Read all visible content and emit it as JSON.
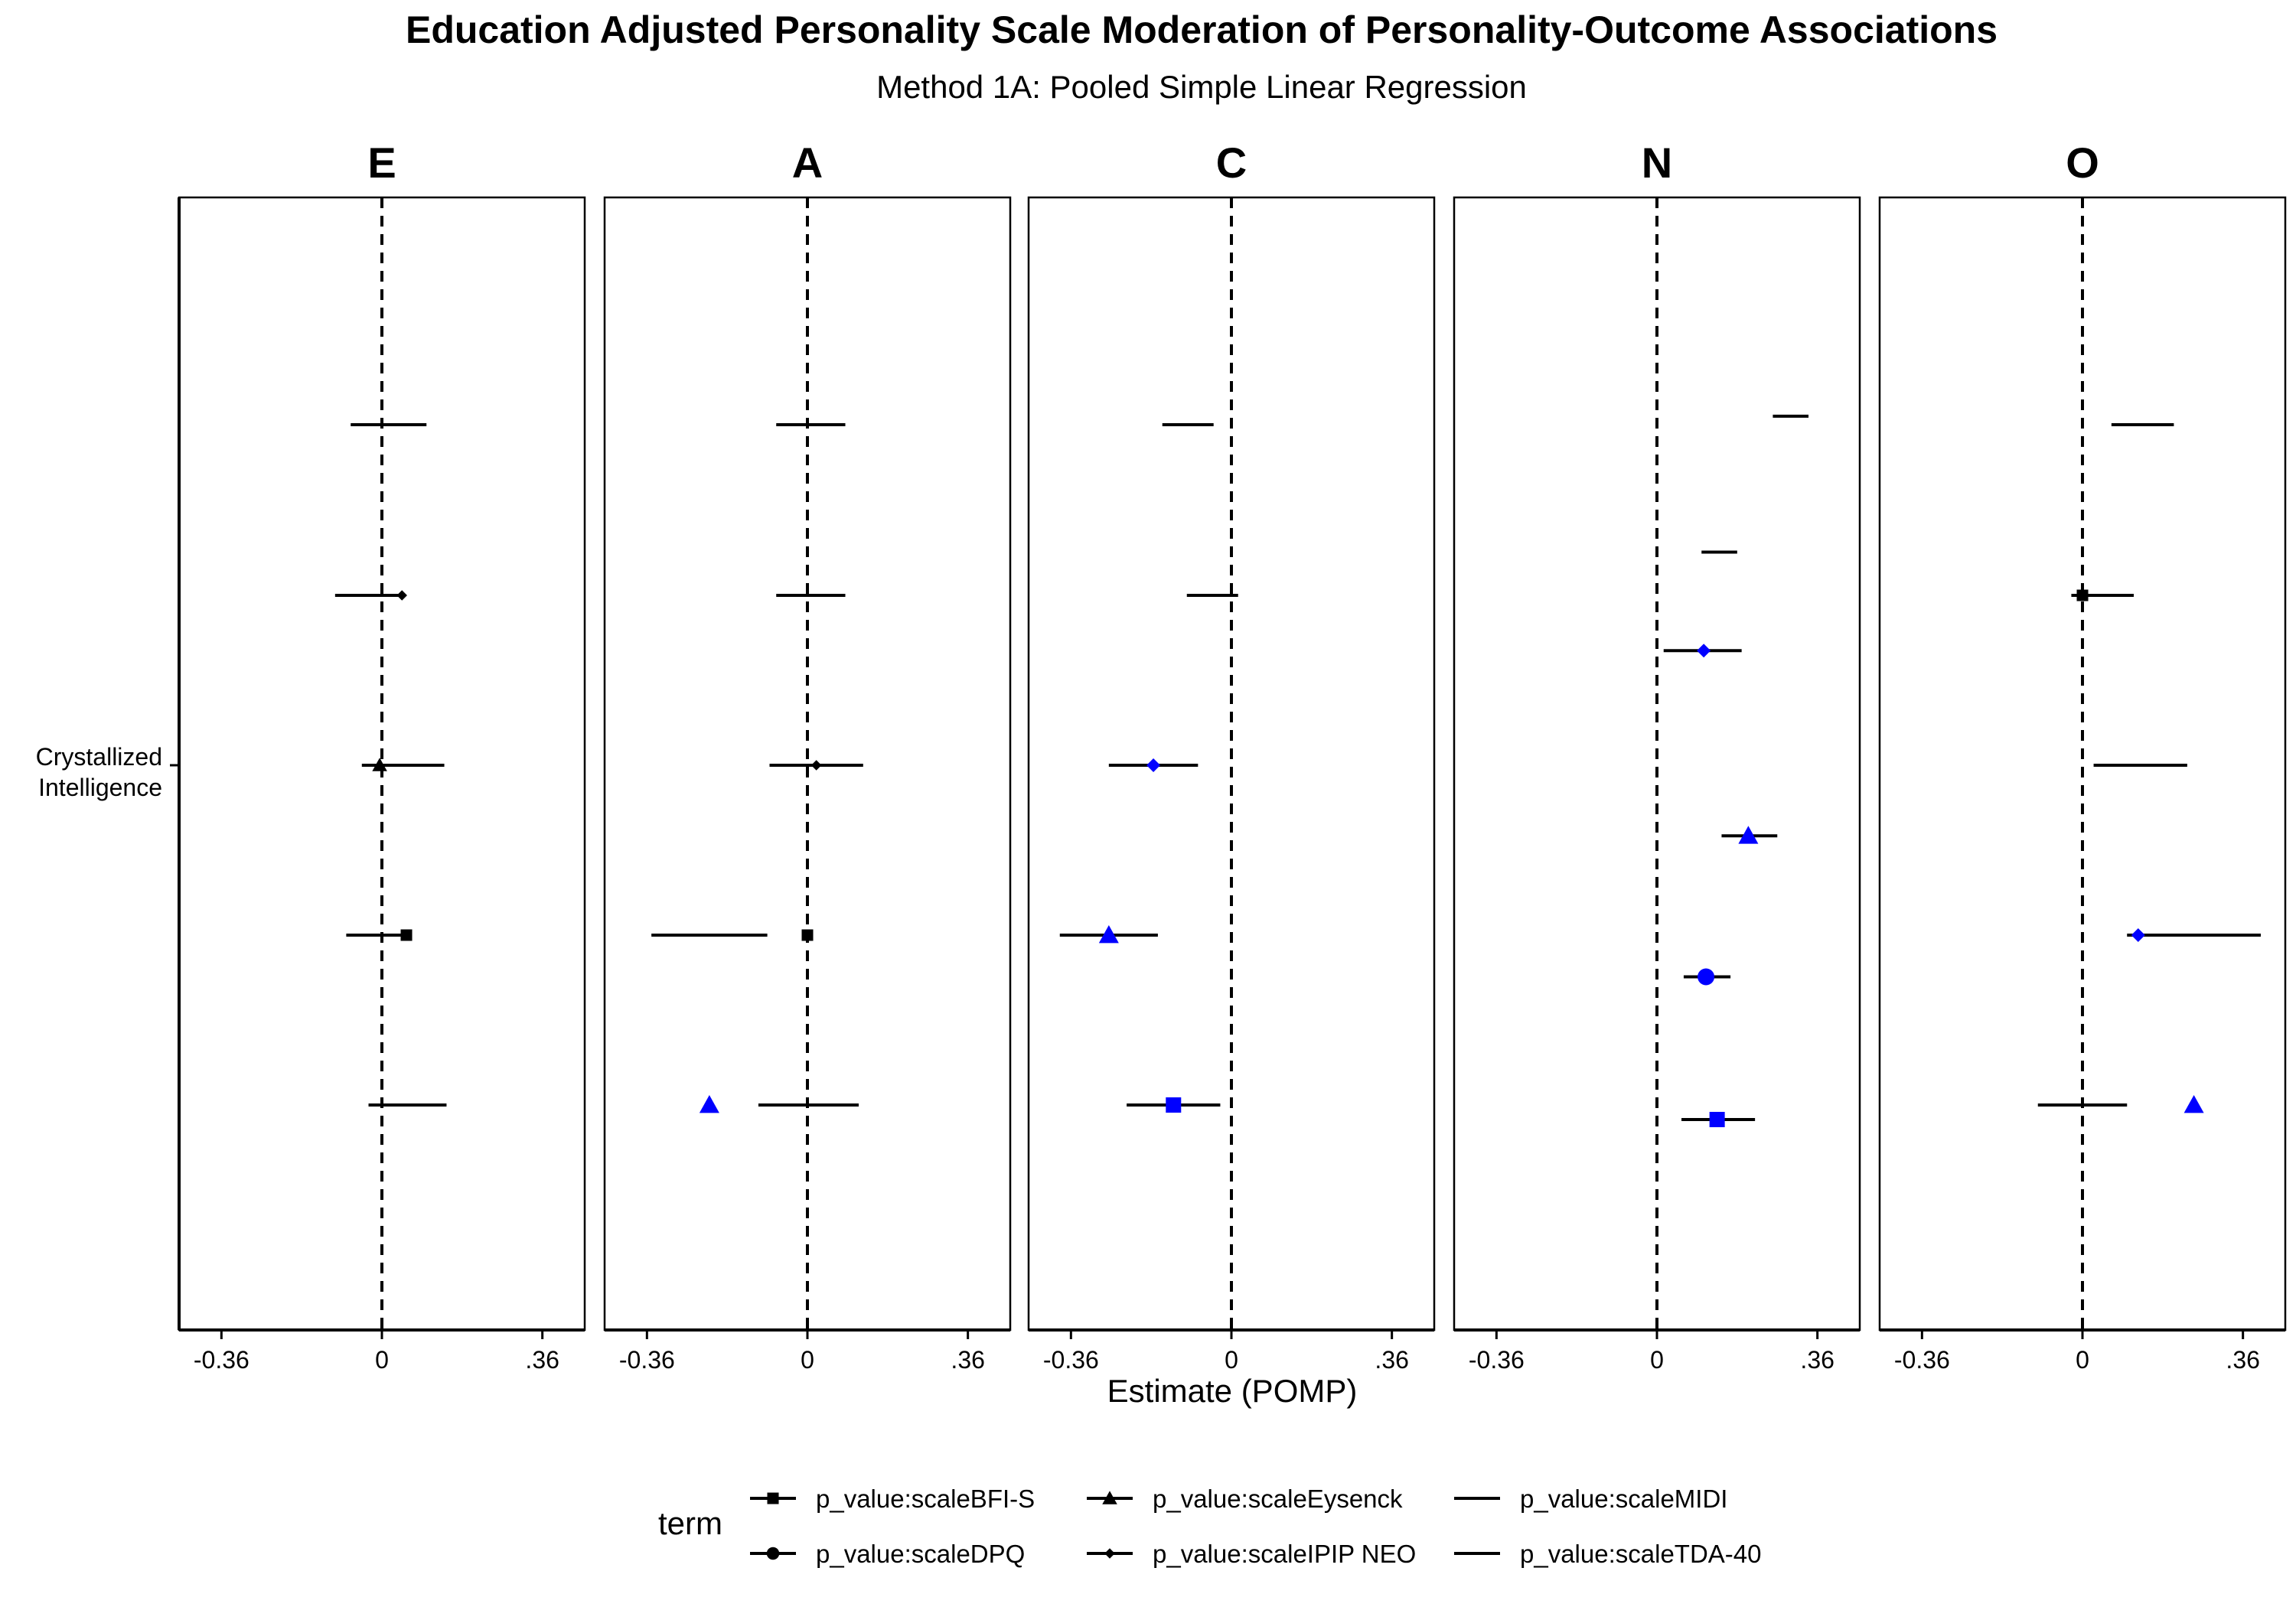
{
  "chart_data": {
    "type": "forest",
    "title": "Education Adjusted Personality Scale Moderation of Personality-Outcome Associations",
    "subtitle": "Method 1A: Pooled Simple Linear Regression",
    "xlabel": "Estimate (POMP)",
    "ylabel_category": "Crystallized Intelligence",
    "x_ticks": [
      {
        "value": -0.36,
        "label": "-0.36"
      },
      {
        "value": 0,
        "label": "0"
      },
      {
        "value": 0.36,
        "label": ".36"
      }
    ],
    "xlim": [
      -0.455,
      0.455
    ],
    "reference_line": 0,
    "legend": {
      "title": "term",
      "position": "bottom",
      "entries": [
        {
          "label": "p_value:scaleBFI-S",
          "shape": "square"
        },
        {
          "label": "p_value:scaleDPQ",
          "shape": "circle"
        },
        {
          "label": "p_value:scaleEysenck",
          "shape": "triangle"
        },
        {
          "label": "p_value:scaleIPIP NEO",
          "shape": "diamond"
        },
        {
          "label": "p_value:scaleMIDI",
          "shape": "none"
        },
        {
          "label": "p_value:scaleTDA-40",
          "shape": "none"
        }
      ]
    },
    "colors": {
      "significant": "#0000ff",
      "nonsignificant": "#000000"
    },
    "panels": [
      {
        "label": "E",
        "rows": [
          {
            "row": 0,
            "estimate": 0.05,
            "lo": -0.07,
            "hi": 0.1,
            "scale": "MIDI",
            "shape": "none",
            "significant": false
          },
          {
            "row": 1,
            "estimate": 0.045,
            "lo": -0.105,
            "hi": 0.045,
            "scale": "IPIP NEO",
            "shape": "diamond",
            "significant": false
          },
          {
            "row": 2,
            "estimate": -0.005,
            "lo": -0.045,
            "hi": 0.14,
            "scale": "Eysenck",
            "shape": "triangle",
            "significant": false
          },
          {
            "row": 3,
            "estimate": 0.055,
            "lo": -0.08,
            "hi": 0.055,
            "scale": "BFI-S",
            "shape": "square",
            "significant": false
          },
          {
            "row": 4,
            "estimate": 0.05,
            "lo": -0.03,
            "hi": 0.145,
            "scale": "TDA-40",
            "shape": "none",
            "significant": false
          }
        ]
      },
      {
        "label": "A",
        "rows": [
          {
            "row": 0,
            "estimate": 0.0,
            "lo": -0.07,
            "hi": 0.085,
            "scale": "MIDI",
            "shape": "none",
            "significant": false
          },
          {
            "row": 1,
            "estimate": 0.0,
            "lo": -0.07,
            "hi": 0.085,
            "scale": "IPIP NEO",
            "shape": "none",
            "significant": false
          },
          {
            "row": 2,
            "estimate": 0.02,
            "lo": -0.085,
            "hi": 0.125,
            "scale": "IPIP NEO",
            "shape": "diamond",
            "significant": false
          },
          {
            "row": 3,
            "estimate": 0.0,
            "lo": -0.35,
            "hi": -0.09,
            "scale": "BFI-S",
            "shape": "square",
            "significant": false
          },
          {
            "row": 4,
            "estimate": -0.22,
            "lo": -0.11,
            "hi": 0.115,
            "scale": "Eysenck",
            "shape": "triangle",
            "significant": true
          }
        ]
      },
      {
        "label": "C",
        "rows": [
          {
            "row": 0,
            "estimate": -0.1,
            "lo": -0.155,
            "hi": -0.04,
            "scale": "MIDI",
            "shape": "none",
            "significant": false
          },
          {
            "row": 1,
            "estimate": -0.05,
            "lo": -0.1,
            "hi": 0.015,
            "scale": "TDA-40",
            "shape": "none",
            "significant": false
          },
          {
            "row": 2,
            "estimate": -0.175,
            "lo": -0.275,
            "hi": -0.075,
            "scale": "IPIP NEO",
            "shape": "diamond",
            "significant": true
          },
          {
            "row": 3,
            "estimate": -0.275,
            "lo": -0.385,
            "hi": -0.165,
            "scale": "Eysenck",
            "shape": "triangle",
            "significant": true
          },
          {
            "row": 4,
            "estimate": -0.13,
            "lo": -0.235,
            "hi": -0.025,
            "scale": "BFI-S",
            "shape": "square",
            "significant": true
          }
        ]
      },
      {
        "label": "N",
        "rows": [
          {
            "row": -0.05,
            "estimate": 0.3,
            "lo": 0.26,
            "hi": 0.34,
            "scale": "MIDI",
            "shape": "none",
            "significant": false
          },
          {
            "row": 0.75,
            "estimate": 0.15,
            "lo": 0.1,
            "hi": 0.18,
            "scale": "TDA-40",
            "shape": "none",
            "significant": false
          },
          {
            "row": 1.33,
            "estimate": 0.105,
            "lo": 0.015,
            "hi": 0.19,
            "scale": "IPIP NEO",
            "shape": "diamond",
            "significant": true
          },
          {
            "row": 2.42,
            "estimate": 0.205,
            "lo": 0.145,
            "hi": 0.27,
            "scale": "Eysenck",
            "shape": "triangle",
            "significant": true
          },
          {
            "row": 3.25,
            "estimate": 0.11,
            "lo": 0.06,
            "hi": 0.165,
            "scale": "DPQ",
            "shape": "circle",
            "significant": true
          },
          {
            "row": 4.09,
            "estimate": 0.135,
            "lo": 0.055,
            "hi": 0.22,
            "scale": "BFI-S",
            "shape": "square",
            "significant": true
          }
        ]
      },
      {
        "label": "O",
        "rows": [
          {
            "row": 0,
            "estimate": 0.12,
            "lo": 0.065,
            "hi": 0.205,
            "scale": "MIDI",
            "shape": "none",
            "significant": false
          },
          {
            "row": 1,
            "estimate": 0.0,
            "lo": -0.025,
            "hi": 0.115,
            "scale": "BFI-S",
            "shape": "square",
            "significant": false
          },
          {
            "row": 2,
            "estimate": 0.12,
            "lo": 0.025,
            "hi": 0.235,
            "scale": "TDA-40",
            "shape": "none",
            "significant": false
          },
          {
            "row": 3,
            "estimate": 0.125,
            "lo": 0.1,
            "hi": 0.4,
            "scale": "IPIP NEO",
            "shape": "diamond",
            "significant": true
          },
          {
            "row": 4,
            "estimate": 0.25,
            "lo": -0.1,
            "hi": 0.1,
            "scale": "Eysenck",
            "shape": "triangle",
            "significant": true
          }
        ]
      }
    ]
  }
}
